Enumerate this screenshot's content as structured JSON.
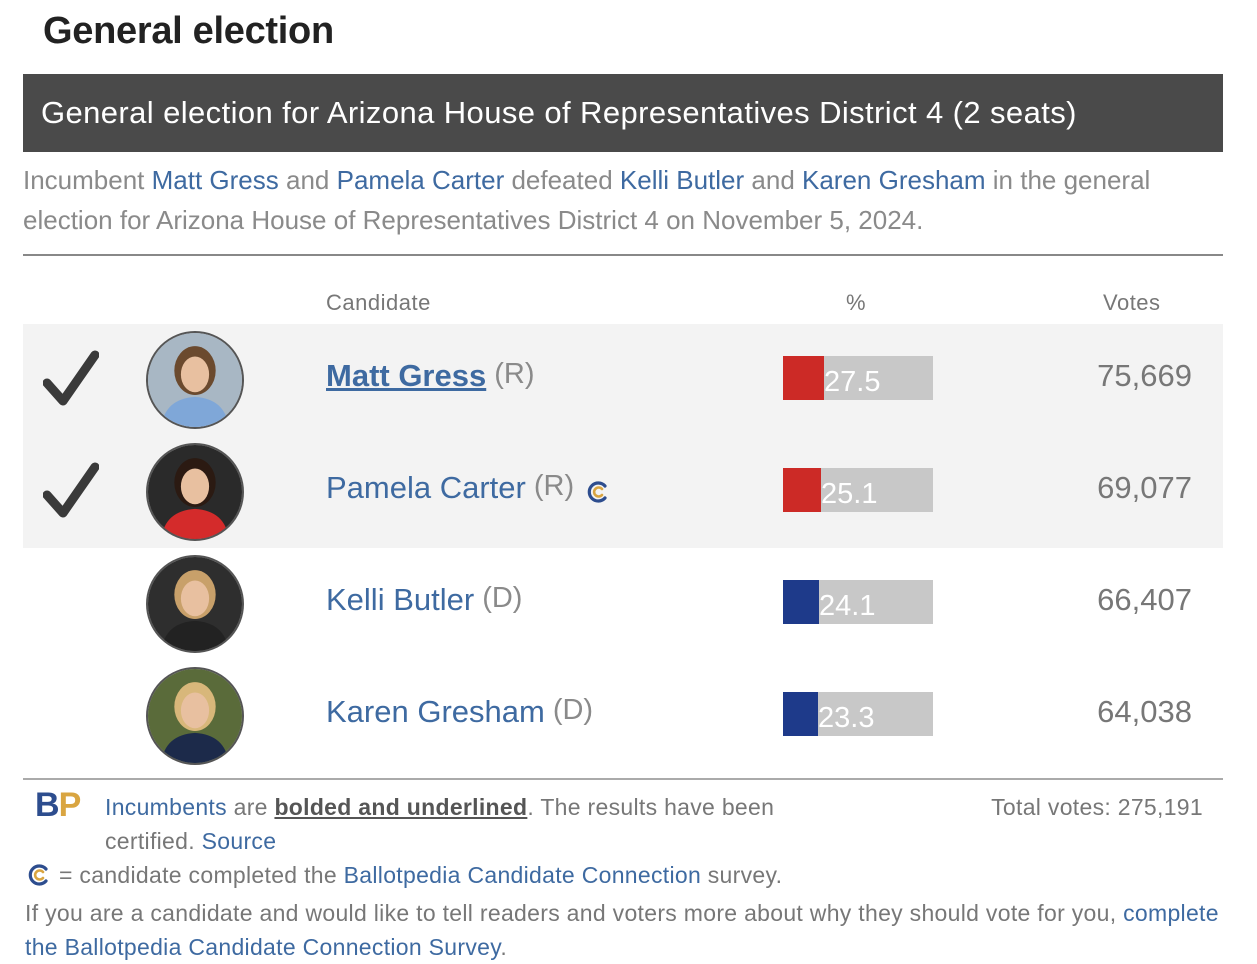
{
  "page_heading": "General election",
  "race_header": "General election for Arizona House of Representatives District 4 (2 seats)",
  "summary": {
    "prefix": "Incumbent ",
    "winner1": "Matt Gress",
    "and1": " and ",
    "winner2": "Pamela Carter",
    "defeated": " defeated ",
    "loser1": "Kelli Butler",
    "and2": " and ",
    "loser2": "Karen Gresham",
    "suffix": " in the general election for Arizona House of Representatives District 4 on November 5, 2024."
  },
  "columns": {
    "candidate": "Candidate",
    "percent": "%",
    "votes": "Votes"
  },
  "candidates": [
    {
      "name": "Matt Gress",
      "party": "(R)",
      "percent": "27.5",
      "pct_value": 27.5,
      "votes": "75,669",
      "winner": true,
      "incumbent": true,
      "cc": false,
      "bar_color": "#cc2a26",
      "photo_bg": "#a8b7c4",
      "shirt": "#7fa7d8",
      "hair": "#6b4a2e"
    },
    {
      "name": "Pamela Carter",
      "party": "(R)",
      "percent": "25.1",
      "pct_value": 25.1,
      "votes": "69,077",
      "winner": true,
      "incumbent": false,
      "cc": true,
      "bar_color": "#cc2a26",
      "photo_bg": "#2a2a2a",
      "shirt": "#d42b2b",
      "hair": "#2b1a12"
    },
    {
      "name": "Kelli Butler",
      "party": "(D)",
      "percent": "24.1",
      "pct_value": 24.1,
      "votes": "66,407",
      "winner": false,
      "incumbent": false,
      "cc": false,
      "bar_color": "#1e3a8a",
      "photo_bg": "#2e2e2e",
      "shirt": "#222222",
      "hair": "#c8a06a"
    },
    {
      "name": "Karen Gresham",
      "party": "(D)",
      "percent": "23.3",
      "pct_value": 23.3,
      "votes": "64,038",
      "winner": false,
      "incumbent": false,
      "cc": false,
      "bar_color": "#1e3a8a",
      "photo_bg": "#5a6b3a",
      "shirt": "#1c2a4a",
      "hair": "#d8b77a"
    }
  ],
  "footer": {
    "logo_b": "B",
    "logo_p": "P",
    "incumbents_link": "Incumbents",
    "are": " are ",
    "bolded": "bolded and underlined",
    "certified": ". The results have been certified. ",
    "source_link": "Source",
    "total_votes": "Total votes: 275,191",
    "cc_text": "= candidate completed the ",
    "cc_link": "Ballotpedia Candidate Connection",
    "cc_suffix": " survey.",
    "foot_text": "If you are a candidate and would like to tell readers and voters more about why they should vote for you, ",
    "foot_link": "complete the Ballotpedia Candidate Connection Survey",
    "foot_end": "."
  }
}
